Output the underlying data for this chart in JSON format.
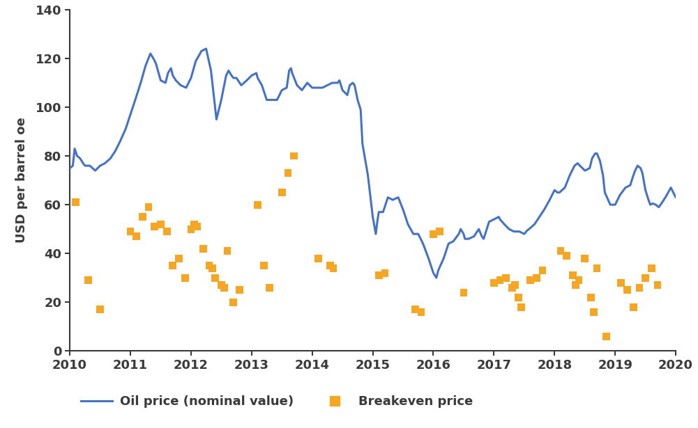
{
  "title": "",
  "ylabel": "USD per barrel oe",
  "ylim": [
    0,
    140
  ],
  "yticks": [
    0,
    20,
    40,
    60,
    80,
    100,
    120,
    140
  ],
  "xlim": [
    2010,
    2020
  ],
  "xticks": [
    2010,
    2011,
    2012,
    2013,
    2014,
    2015,
    2016,
    2017,
    2018,
    2019,
    2020
  ],
  "line_color": "#4472C4",
  "scatter_color": "#F5A623",
  "line_width": 2.2,
  "spine_color": "#3a3a3a",
  "background_color": "#ffffff",
  "legend_oil_label": "Oil price (nominal value)",
  "legend_breakeven_label": "Breakeven price",
  "oil_price": [
    [
      2010.0,
      75.0
    ],
    [
      2010.05,
      76.0
    ],
    [
      2010.08,
      83.0
    ],
    [
      2010.12,
      80.0
    ],
    [
      2010.17,
      79.0
    ],
    [
      2010.22,
      77.0
    ],
    [
      2010.25,
      76.0
    ],
    [
      2010.33,
      76.0
    ],
    [
      2010.42,
      74.0
    ],
    [
      2010.5,
      76.0
    ],
    [
      2010.58,
      77.0
    ],
    [
      2010.67,
      79.0
    ],
    [
      2010.75,
      82.0
    ],
    [
      2010.83,
      86.0
    ],
    [
      2010.92,
      91.0
    ],
    [
      2011.0,
      97.0
    ],
    [
      2011.08,
      103.0
    ],
    [
      2011.17,
      110.0
    ],
    [
      2011.25,
      117.0
    ],
    [
      2011.33,
      122.0
    ],
    [
      2011.38,
      120.0
    ],
    [
      2011.42,
      118.0
    ],
    [
      2011.5,
      111.0
    ],
    [
      2011.58,
      110.0
    ],
    [
      2011.62,
      114.0
    ],
    [
      2011.67,
      116.0
    ],
    [
      2011.7,
      113.0
    ],
    [
      2011.75,
      111.0
    ],
    [
      2011.83,
      109.0
    ],
    [
      2011.92,
      108.0
    ],
    [
      2012.0,
      112.0
    ],
    [
      2012.08,
      119.0
    ],
    [
      2012.15,
      122.0
    ],
    [
      2012.17,
      123.0
    ],
    [
      2012.25,
      124.0
    ],
    [
      2012.33,
      115.0
    ],
    [
      2012.37,
      106.0
    ],
    [
      2012.42,
      95.0
    ],
    [
      2012.5,
      103.0
    ],
    [
      2012.58,
      113.0
    ],
    [
      2012.62,
      115.0
    ],
    [
      2012.67,
      113.0
    ],
    [
      2012.7,
      112.0
    ],
    [
      2012.75,
      112.0
    ],
    [
      2012.83,
      109.0
    ],
    [
      2012.92,
      111.0
    ],
    [
      2013.0,
      113.0
    ],
    [
      2013.08,
      114.0
    ],
    [
      2013.1,
      112.0
    ],
    [
      2013.17,
      109.0
    ],
    [
      2013.25,
      103.0
    ],
    [
      2013.33,
      103.0
    ],
    [
      2013.42,
      103.0
    ],
    [
      2013.5,
      107.0
    ],
    [
      2013.58,
      108.0
    ],
    [
      2013.62,
      115.0
    ],
    [
      2013.65,
      116.0
    ],
    [
      2013.67,
      114.0
    ],
    [
      2013.75,
      109.0
    ],
    [
      2013.83,
      107.0
    ],
    [
      2013.92,
      110.0
    ],
    [
      2014.0,
      108.0
    ],
    [
      2014.08,
      108.0
    ],
    [
      2014.17,
      108.0
    ],
    [
      2014.25,
      109.0
    ],
    [
      2014.33,
      110.0
    ],
    [
      2014.42,
      110.0
    ],
    [
      2014.45,
      111.0
    ],
    [
      2014.5,
      107.0
    ],
    [
      2014.58,
      105.0
    ],
    [
      2014.62,
      109.0
    ],
    [
      2014.67,
      110.0
    ],
    [
      2014.7,
      109.0
    ],
    [
      2014.75,
      103.0
    ],
    [
      2014.8,
      99.0
    ],
    [
      2014.83,
      85.0
    ],
    [
      2014.92,
      72.0
    ],
    [
      2015.0,
      55.0
    ],
    [
      2015.05,
      48.0
    ],
    [
      2015.08,
      54.0
    ],
    [
      2015.1,
      57.0
    ],
    [
      2015.17,
      57.0
    ],
    [
      2015.25,
      63.0
    ],
    [
      2015.33,
      62.0
    ],
    [
      2015.42,
      63.0
    ],
    [
      2015.5,
      58.0
    ],
    [
      2015.58,
      52.0
    ],
    [
      2015.67,
      48.0
    ],
    [
      2015.75,
      48.0
    ],
    [
      2015.83,
      44.0
    ],
    [
      2015.92,
      38.0
    ],
    [
      2016.0,
      32.0
    ],
    [
      2016.05,
      30.0
    ],
    [
      2016.08,
      33.0
    ],
    [
      2016.17,
      38.0
    ],
    [
      2016.25,
      44.0
    ],
    [
      2016.33,
      45.0
    ],
    [
      2016.42,
      48.0
    ],
    [
      2016.45,
      50.0
    ],
    [
      2016.5,
      48.0
    ],
    [
      2016.52,
      46.0
    ],
    [
      2016.58,
      46.0
    ],
    [
      2016.67,
      47.0
    ],
    [
      2016.75,
      50.0
    ],
    [
      2016.8,
      47.0
    ],
    [
      2016.83,
      46.0
    ],
    [
      2016.92,
      53.0
    ],
    [
      2017.0,
      54.0
    ],
    [
      2017.08,
      55.0
    ],
    [
      2017.1,
      54.0
    ],
    [
      2017.17,
      52.0
    ],
    [
      2017.25,
      50.0
    ],
    [
      2017.33,
      49.0
    ],
    [
      2017.42,
      49.0
    ],
    [
      2017.5,
      48.0
    ],
    [
      2017.55,
      49.5
    ],
    [
      2017.58,
      50.0
    ],
    [
      2017.67,
      52.0
    ],
    [
      2017.75,
      55.0
    ],
    [
      2017.83,
      58.0
    ],
    [
      2017.92,
      62.0
    ],
    [
      2018.0,
      66.0
    ],
    [
      2018.05,
      65.0
    ],
    [
      2018.08,
      65.0
    ],
    [
      2018.17,
      67.0
    ],
    [
      2018.25,
      72.0
    ],
    [
      2018.33,
      76.0
    ],
    [
      2018.38,
      77.0
    ],
    [
      2018.42,
      76.0
    ],
    [
      2018.5,
      74.0
    ],
    [
      2018.58,
      75.0
    ],
    [
      2018.62,
      79.0
    ],
    [
      2018.67,
      81.0
    ],
    [
      2018.7,
      81.0
    ],
    [
      2018.75,
      78.0
    ],
    [
      2018.8,
      72.0
    ],
    [
      2018.83,
      65.0
    ],
    [
      2018.92,
      60.0
    ],
    [
      2019.0,
      60.0
    ],
    [
      2019.08,
      64.0
    ],
    [
      2019.17,
      67.0
    ],
    [
      2019.25,
      68.0
    ],
    [
      2019.3,
      72.0
    ],
    [
      2019.33,
      74.0
    ],
    [
      2019.37,
      76.0
    ],
    [
      2019.42,
      75.0
    ],
    [
      2019.45,
      73.0
    ],
    [
      2019.5,
      66.0
    ],
    [
      2019.55,
      62.0
    ],
    [
      2019.58,
      60.0
    ],
    [
      2019.62,
      60.5
    ],
    [
      2019.67,
      60.0
    ],
    [
      2019.72,
      59.0
    ],
    [
      2019.75,
      60.0
    ],
    [
      2019.83,
      63.0
    ],
    [
      2019.92,
      67.0
    ],
    [
      2020.0,
      63.0
    ]
  ],
  "breakeven_points": [
    [
      2010.1,
      61.0
    ],
    [
      2010.3,
      29.0
    ],
    [
      2010.5,
      17.0
    ],
    [
      2011.0,
      49.0
    ],
    [
      2011.1,
      47.0
    ],
    [
      2011.2,
      55.0
    ],
    [
      2011.3,
      59.0
    ],
    [
      2011.4,
      51.0
    ],
    [
      2011.5,
      52.0
    ],
    [
      2011.6,
      49.0
    ],
    [
      2011.7,
      35.0
    ],
    [
      2011.8,
      38.0
    ],
    [
      2011.9,
      30.0
    ],
    [
      2012.0,
      50.0
    ],
    [
      2012.05,
      52.0
    ],
    [
      2012.1,
      51.0
    ],
    [
      2012.2,
      42.0
    ],
    [
      2012.3,
      35.0
    ],
    [
      2012.35,
      34.0
    ],
    [
      2012.4,
      30.0
    ],
    [
      2012.5,
      27.0
    ],
    [
      2012.55,
      26.0
    ],
    [
      2012.6,
      41.0
    ],
    [
      2012.7,
      20.0
    ],
    [
      2012.8,
      25.0
    ],
    [
      2013.1,
      60.0
    ],
    [
      2013.2,
      35.0
    ],
    [
      2013.3,
      26.0
    ],
    [
      2013.5,
      65.0
    ],
    [
      2013.6,
      73.0
    ],
    [
      2013.7,
      80.0
    ],
    [
      2014.1,
      38.0
    ],
    [
      2014.3,
      35.0
    ],
    [
      2014.35,
      34.0
    ],
    [
      2015.1,
      31.0
    ],
    [
      2015.2,
      32.0
    ],
    [
      2015.7,
      17.0
    ],
    [
      2015.8,
      16.0
    ],
    [
      2016.0,
      48.0
    ],
    [
      2016.1,
      49.0
    ],
    [
      2016.5,
      24.0
    ],
    [
      2017.0,
      28.0
    ],
    [
      2017.1,
      29.0
    ],
    [
      2017.2,
      30.0
    ],
    [
      2017.3,
      26.0
    ],
    [
      2017.35,
      27.0
    ],
    [
      2017.4,
      22.0
    ],
    [
      2017.45,
      18.0
    ],
    [
      2017.6,
      29.0
    ],
    [
      2017.7,
      30.0
    ],
    [
      2017.8,
      33.0
    ],
    [
      2018.1,
      41.0
    ],
    [
      2018.2,
      39.0
    ],
    [
      2018.3,
      31.0
    ],
    [
      2018.35,
      27.0
    ],
    [
      2018.4,
      29.0
    ],
    [
      2018.5,
      38.0
    ],
    [
      2018.6,
      22.0
    ],
    [
      2018.65,
      16.0
    ],
    [
      2018.7,
      34.0
    ],
    [
      2018.85,
      6.0
    ],
    [
      2019.1,
      28.0
    ],
    [
      2019.2,
      25.0
    ],
    [
      2019.3,
      18.0
    ],
    [
      2019.4,
      26.0
    ],
    [
      2019.5,
      30.0
    ],
    [
      2019.6,
      34.0
    ],
    [
      2019.7,
      27.0
    ]
  ],
  "scatter_size": 60,
  "scatter_marker": "s",
  "tick_fontsize": 13,
  "label_fontsize": 13,
  "legend_fontsize": 13
}
